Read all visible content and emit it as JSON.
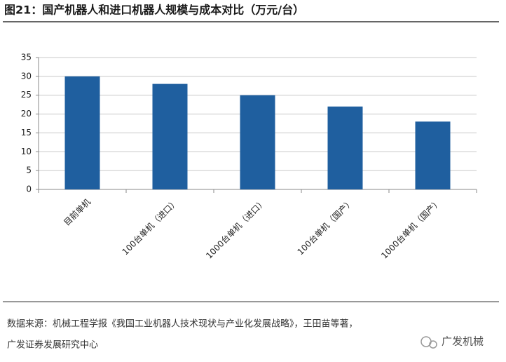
{
  "chart_data": {
    "type": "bar",
    "title": "图21：国产机器人和进口机器人规模与成本对比（万元/台）",
    "categories": [
      "目前单机",
      "100台单机（进口）",
      "1000台单机（进口）",
      "100台单机（国产）",
      "1000台单机（国产）"
    ],
    "values": [
      30,
      28,
      25,
      22,
      18
    ],
    "color": "#1f5f9f",
    "ylim": [
      0,
      35
    ],
    "yticks": [
      0,
      5,
      10,
      15,
      20,
      25,
      30,
      35
    ],
    "grid": true,
    "source": [
      "数据来源：机械工程学报《我国工业机器人技术现状与产业化发展战略》，王田苗等著，",
      "广发证券发展研究中心"
    ],
    "watermark": "广发机械"
  }
}
